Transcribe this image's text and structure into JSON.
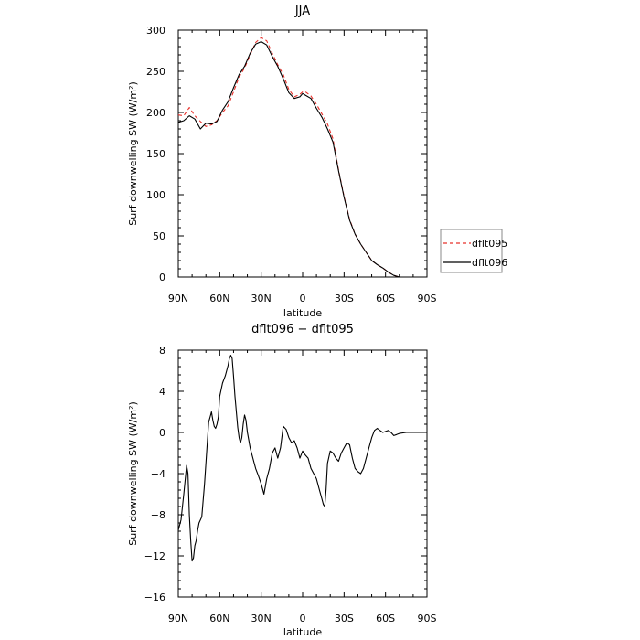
{
  "chart_data": [
    {
      "type": "line",
      "title": "JJA",
      "xlabel": "latitude",
      "ylabel": "Surf downwelling SW (W/m²)",
      "xlim": [
        90,
        -90
      ],
      "ylim": [
        0,
        300
      ],
      "x_tick_values": [
        90,
        60,
        30,
        0,
        -30,
        -60,
        -90
      ],
      "x_tick_labels": [
        "90N",
        "60N",
        "30N",
        "0",
        "30S",
        "60S",
        "90S"
      ],
      "y_tick_values": [
        0,
        50,
        100,
        150,
        200,
        250,
        300
      ],
      "y_tick_labels": [
        "0",
        "50",
        "100",
        "150",
        "200",
        "250",
        "300"
      ],
      "grid": false,
      "legend_position": "outside-right",
      "series": [
        {
          "name": "dflt095",
          "color": "#e8302a",
          "dash": "dashed",
          "x": [
            90,
            86,
            82,
            78,
            74,
            70,
            66,
            62,
            58,
            54,
            50,
            46,
            42,
            38,
            34,
            30,
            26,
            22,
            18,
            14,
            10,
            6,
            2,
            0,
            -2,
            -6,
            -10,
            -14,
            -18,
            -22,
            -26,
            -30,
            -34,
            -38,
            -42,
            -46,
            -50,
            -54,
            -58,
            -62,
            -66,
            -70,
            -74,
            -78,
            -82,
            -86,
            -90
          ],
          "y": [
            197,
            196,
            206,
            196,
            189,
            183,
            185,
            190,
            200,
            208,
            225,
            243,
            254,
            270,
            285,
            291,
            287,
            272,
            258,
            246,
            228,
            219,
            222,
            225,
            225,
            220,
            210,
            198,
            186,
            168,
            130,
            98,
            70,
            52,
            40,
            30,
            20,
            15,
            11,
            6,
            2,
            0,
            0,
            0,
            0,
            0,
            0
          ]
        },
        {
          "name": "dflt096",
          "color": "#000000",
          "dash": "solid",
          "x": [
            90,
            86,
            82,
            78,
            74,
            70,
            66,
            62,
            58,
            54,
            50,
            46,
            42,
            38,
            34,
            30,
            26,
            22,
            18,
            14,
            10,
            6,
            2,
            0,
            -2,
            -6,
            -10,
            -14,
            -18,
            -22,
            -26,
            -30,
            -34,
            -38,
            -42,
            -46,
            -50,
            -54,
            -58,
            -62,
            -66,
            -70,
            -74,
            -78,
            -82,
            -86,
            -90
          ],
          "y": [
            188,
            190,
            196,
            192,
            180,
            187,
            186,
            189,
            203,
            213,
            230,
            246,
            256,
            272,
            283,
            286,
            282,
            268,
            256,
            241,
            224,
            217,
            219,
            223,
            221,
            217,
            205,
            194,
            180,
            164,
            129,
            97,
            69,
            52,
            40,
            30,
            20,
            15,
            11,
            6,
            2,
            0,
            0,
            0,
            0,
            0,
            0
          ]
        }
      ]
    },
    {
      "type": "line",
      "title": "dflt096 − dflt095",
      "xlabel": "latitude",
      "ylabel": "Surf downwelling SW (W/m²)",
      "xlim": [
        90,
        -90
      ],
      "ylim": [
        -16,
        8
      ],
      "x_tick_values": [
        90,
        60,
        30,
        0,
        -30,
        -60,
        -90
      ],
      "x_tick_labels": [
        "90N",
        "60N",
        "30N",
        "0",
        "30S",
        "60S",
        "90S"
      ],
      "y_tick_values": [
        8,
        4,
        0,
        -4,
        -8,
        -12,
        -16
      ],
      "y_tick_labels": [
        "8",
        "4",
        "0",
        "−4",
        "−8",
        "−12",
        "−16"
      ],
      "grid": false,
      "series": [
        {
          "color": "#000000",
          "dash": "solid",
          "x": [
            90,
            88,
            86,
            84,
            83,
            82,
            81,
            80,
            79,
            78,
            77,
            76,
            75,
            73,
            71,
            69,
            68,
            67,
            66,
            65,
            64,
            63,
            62,
            61,
            60,
            58,
            56,
            54,
            53,
            52,
            51,
            50,
            49,
            48,
            47,
            46,
            45,
            44,
            43,
            42,
            41,
            40,
            38,
            36,
            34,
            32,
            30,
            28,
            26,
            24,
            22,
            20,
            18,
            16,
            14,
            12,
            10,
            8,
            6,
            4,
            2,
            0,
            -2,
            -4,
            -6,
            -8,
            -10,
            -12,
            -14,
            -15,
            -16,
            -17,
            -18,
            -20,
            -22,
            -24,
            -26,
            -28,
            -30,
            -32,
            -34,
            -36,
            -38,
            -40,
            -42,
            -44,
            -46,
            -48,
            -50,
            -52,
            -54,
            -56,
            -58,
            -60,
            -62,
            -64,
            -66,
            -68,
            -70,
            -75,
            -80,
            -85,
            -90
          ],
          "y": [
            -9.5,
            -8.5,
            -6,
            -3.2,
            -4,
            -8,
            -10.5,
            -12.5,
            -12.2,
            -11,
            -10.5,
            -9.5,
            -8.8,
            -8.2,
            -5,
            -1,
            1,
            1.5,
            2,
            1.2,
            0.6,
            0.4,
            0.8,
            1.5,
            3.5,
            4.8,
            5.5,
            6.5,
            7.2,
            7.5,
            7.2,
            5.5,
            3.5,
            2,
            0.5,
            -0.5,
            -1,
            -0.5,
            0.8,
            1.7,
            1.2,
            0,
            -1.5,
            -2.5,
            -3.5,
            -4.2,
            -5,
            -6,
            -4.5,
            -3.5,
            -2,
            -1.5,
            -2.5,
            -1.5,
            0.6,
            0.3,
            -0.5,
            -1,
            -0.8,
            -1.5,
            -2.5,
            -1.8,
            -2.2,
            -2.5,
            -3.5,
            -4,
            -4.5,
            -5.5,
            -6.5,
            -7,
            -7.2,
            -5.5,
            -3,
            -1.8,
            -2,
            -2.5,
            -2.8,
            -2,
            -1.5,
            -1,
            -1.2,
            -2.5,
            -3.5,
            -3.8,
            -4,
            -3.5,
            -2.5,
            -1.5,
            -0.5,
            0.2,
            0.4,
            0.2,
            0,
            0.1,
            0.2,
            0,
            -0.3,
            -0.2,
            -0.1,
            0,
            0,
            0,
            0
          ]
        }
      ]
    }
  ]
}
